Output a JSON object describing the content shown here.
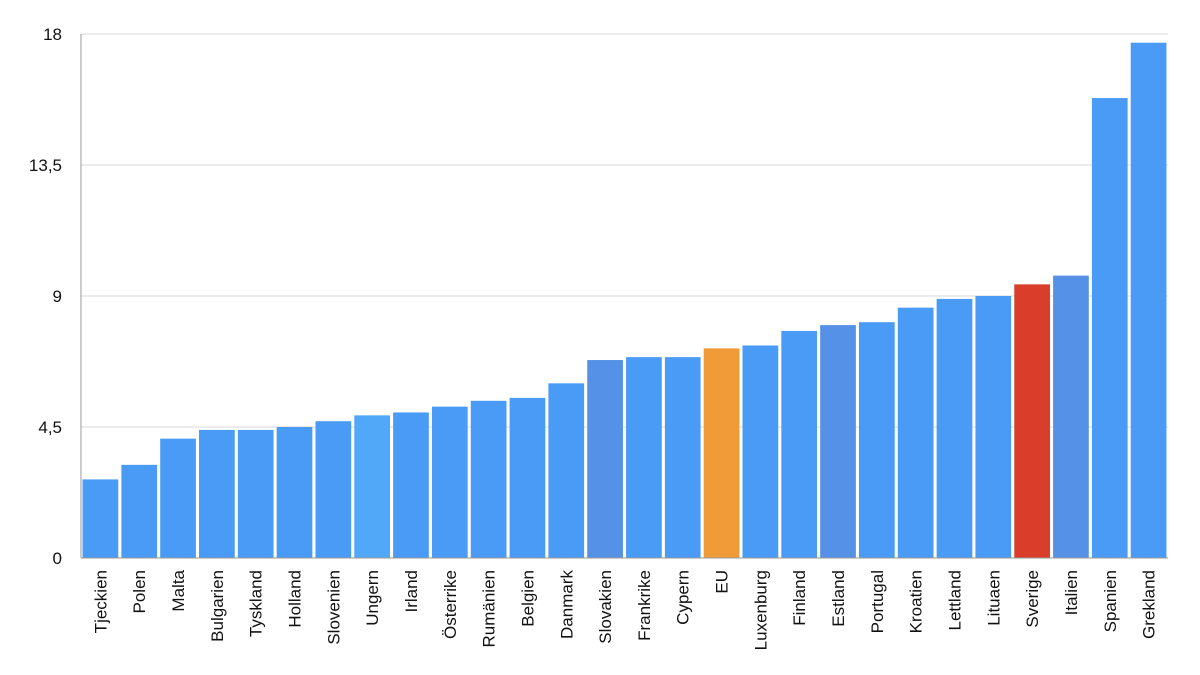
{
  "chart_data": {
    "type": "bar",
    "title": "",
    "xlabel": "",
    "ylabel": "",
    "ylim": [
      0,
      18
    ],
    "yticks": [
      0,
      4.5,
      9,
      13.5,
      18
    ],
    "ytick_labels": [
      "0",
      "4,5",
      "9",
      "13,5",
      "18"
    ],
    "grid": true,
    "categories": [
      "Tjeckien",
      "Polen",
      "Malta",
      "Bulgarien",
      "Tyskland",
      "Holland",
      "Slovenien",
      "Ungern",
      "Irland",
      "Österrike",
      "Rumänien",
      "Belgien",
      "Danmark",
      "Slovakien",
      "Frankrike",
      "Cypern",
      "EU",
      "Luxenburg",
      "Finland",
      "Estland",
      "Portugal",
      "Kroatien",
      "Lettland",
      "Lituaen",
      "Sverige",
      "Italien",
      "Spanien",
      "Grekland"
    ],
    "values": [
      2.7,
      3.2,
      4.1,
      4.4,
      4.4,
      4.5,
      4.7,
      4.9,
      5.0,
      5.2,
      5.4,
      5.5,
      6.0,
      6.8,
      6.9,
      6.9,
      7.2,
      7.3,
      7.8,
      8.0,
      8.1,
      8.6,
      8.9,
      9.0,
      9.4,
      9.7,
      15.8,
      17.7
    ],
    "colors": [
      "#4a9bf6",
      "#4a9bf6",
      "#4a9bf6",
      "#4a9bf6",
      "#4a9bf6",
      "#4a9bf6",
      "#4a9bf6",
      "#52a8f8",
      "#4a9bf6",
      "#4a9bf6",
      "#4a9bf6",
      "#4a9bf6",
      "#4a9bf6",
      "#5591e6",
      "#4a9bf6",
      "#4a9bf6",
      "#f19a38",
      "#4a9bf6",
      "#4a9bf6",
      "#5591e6",
      "#4a9bf6",
      "#4a9bf6",
      "#4a9bf6",
      "#4a9bf6",
      "#d83e2a",
      "#5591e6",
      "#4a9bf6",
      "#4a9bf6"
    ]
  }
}
